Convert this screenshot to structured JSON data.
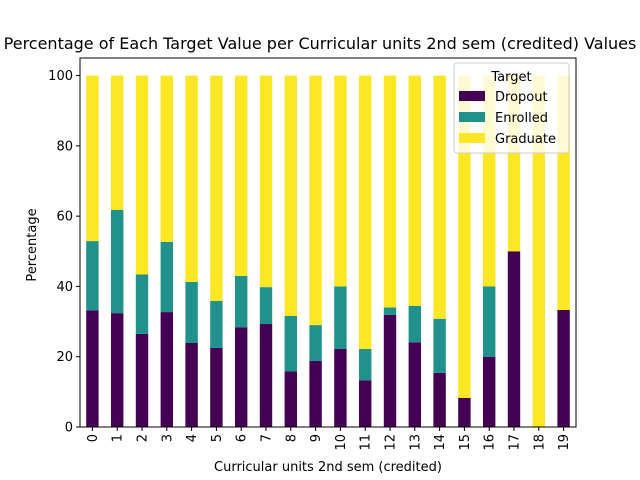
{
  "chart_data": {
    "type": "bar",
    "stacked": true,
    "title": "Percentage of Each Target Value per Curricular units 2nd sem (credited) Values",
    "xlabel": "Curricular units 2nd sem (credited)",
    "ylabel": "Percentage",
    "ylim": [
      0,
      105
    ],
    "yticks": [
      0,
      20,
      40,
      60,
      80,
      100
    ],
    "categories": [
      "0",
      "1",
      "2",
      "3",
      "4",
      "5",
      "6",
      "7",
      "8",
      "9",
      "10",
      "11",
      "12",
      "13",
      "14",
      "15",
      "16",
      "17",
      "18",
      "19"
    ],
    "legend": {
      "title": "Target",
      "placement": "upper right"
    },
    "grid": false,
    "series": [
      {
        "name": "Dropout",
        "color": "#440154",
        "values": [
          33.2,
          32.4,
          26.5,
          32.7,
          23.9,
          22.5,
          28.4,
          29.3,
          15.8,
          18.8,
          22.2,
          13.3,
          31.9,
          24.1,
          15.4,
          8.3,
          20.0,
          50.0,
          0.0,
          33.3
        ]
      },
      {
        "name": "Enrolled",
        "color": "#21918c",
        "values": [
          19.7,
          29.4,
          16.9,
          20.0,
          17.4,
          13.4,
          14.6,
          10.5,
          15.8,
          10.2,
          17.8,
          8.9,
          2.1,
          10.4,
          15.4,
          0.0,
          20.0,
          0.0,
          0.0,
          0.0
        ]
      },
      {
        "name": "Graduate",
        "color": "#fde725",
        "values": [
          47.1,
          38.2,
          56.6,
          47.3,
          58.7,
          64.1,
          57.0,
          60.2,
          68.4,
          71.0,
          60.0,
          77.8,
          66.0,
          65.5,
          69.2,
          91.7,
          60.0,
          50.0,
          100.0,
          66.7
        ]
      }
    ]
  }
}
